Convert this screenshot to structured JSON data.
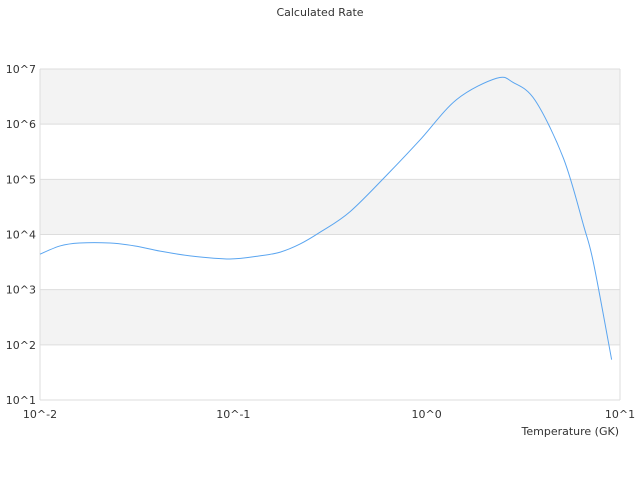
{
  "chart_data": {
    "type": "line",
    "title": "Calculated Rate",
    "xlabel": "Temperature (GK)",
    "ylabel": "",
    "xscale": "log",
    "yscale": "log",
    "xlim": [
      0.01,
      10
    ],
    "ylim": [
      10,
      10000000
    ],
    "x_ticks": [
      {
        "value": 0.01,
        "label": "10^-2"
      },
      {
        "value": 0.1,
        "label": "10^-1"
      },
      {
        "value": 1,
        "label": "10^0"
      },
      {
        "value": 10,
        "label": "10^1"
      }
    ],
    "y_ticks": [
      {
        "value": 10,
        "label": "10^1"
      },
      {
        "value": 100,
        "label": "10^2"
      },
      {
        "value": 1000,
        "label": "10^3"
      },
      {
        "value": 10000,
        "label": "10^4"
      },
      {
        "value": 100000,
        "label": "10^5"
      },
      {
        "value": 1000000,
        "label": "10^6"
      },
      {
        "value": 10000000,
        "label": "10^7"
      }
    ],
    "grid": "horizontal, alternating bands",
    "legend": "none",
    "colors": {
      "line": "#5aa5f0",
      "band": "#f3f3f3",
      "grid": "#dddddd"
    },
    "series": [
      {
        "x": [
          0.01,
          0.0127,
          0.016,
          0.023,
          0.031,
          0.0418,
          0.0597,
          0.096,
          0.137,
          0.175,
          0.221,
          0.281,
          0.402,
          0.647,
          0.925,
          1.43,
          2.3,
          2.8,
          3.64,
          5.1,
          6.5,
          7.3,
          9.05
        ],
        "y": [
          4400,
          6200,
          7000,
          7000,
          6200,
          5000,
          4100,
          3600,
          4100,
          4800,
          6700,
          11000,
          26000,
          138000,
          520000,
          2800000,
          6800000,
          5700000,
          2700000,
          240000,
          14000,
          3000,
          54
        ]
      }
    ]
  }
}
